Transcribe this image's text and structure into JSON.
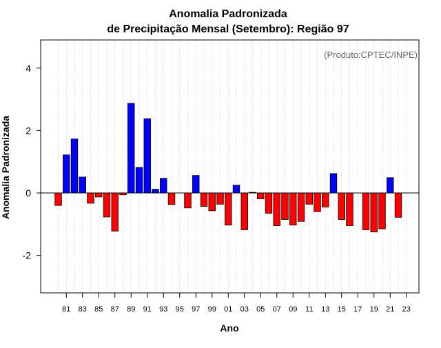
{
  "chart_data": {
    "type": "bar",
    "title_line1": "Anomalia Padronizada",
    "title_line2": "de Precipitação Mensal (Setembro): Região 97",
    "xlabel": "Ano",
    "ylabel": "Anomalia Padronizada",
    "annotation": "(Produto:CPTEC/INPE)",
    "ylim": [
      -3.2,
      4.9
    ],
    "yticks": [
      -2,
      0,
      2,
      4
    ],
    "grid": "vertical dotted",
    "colors": {
      "positive": "#0000ff",
      "negative": "#ff0000",
      "frame": "#000000",
      "grid": "#d3d3d3",
      "annotation": "#666666"
    },
    "x_tick_labels": [
      "81",
      "83",
      "85",
      "87",
      "89",
      "91",
      "93",
      "95",
      "97",
      "99",
      "01",
      "03",
      "05",
      "07",
      "09",
      "11",
      "13",
      "15",
      "17",
      "19",
      "21",
      "23"
    ],
    "categories": [
      "1980",
      "1981",
      "1982",
      "1983",
      "1984",
      "1985",
      "1986",
      "1987",
      "1988",
      "1989",
      "1990",
      "1991",
      "1992",
      "1993",
      "1994",
      "1995",
      "1996",
      "1997",
      "1998",
      "1999",
      "2000",
      "2001",
      "2002",
      "2003",
      "2004",
      "2005",
      "2006",
      "2007",
      "2008",
      "2009",
      "2010",
      "2011",
      "2012",
      "2013",
      "2014",
      "2015",
      "2016",
      "2017",
      "2018",
      "2019",
      "2020",
      "2021",
      "2022",
      "2023"
    ],
    "values": [
      -0.4,
      1.22,
      1.73,
      0.51,
      -0.33,
      -0.13,
      -0.77,
      -1.22,
      -0.06,
      2.87,
      0.82,
      2.38,
      0.12,
      0.47,
      -0.37,
      0.0,
      -0.48,
      0.56,
      -0.43,
      -0.57,
      -0.36,
      -1.03,
      0.25,
      -1.18,
      0.02,
      -0.19,
      -0.65,
      -1.05,
      -0.85,
      -1.03,
      -0.91,
      -0.36,
      -0.6,
      -0.45,
      0.62,
      -0.85,
      -1.05,
      0.0,
      -1.18,
      -1.25,
      -1.15,
      0.49,
      -0.78,
      0.0
    ]
  }
}
